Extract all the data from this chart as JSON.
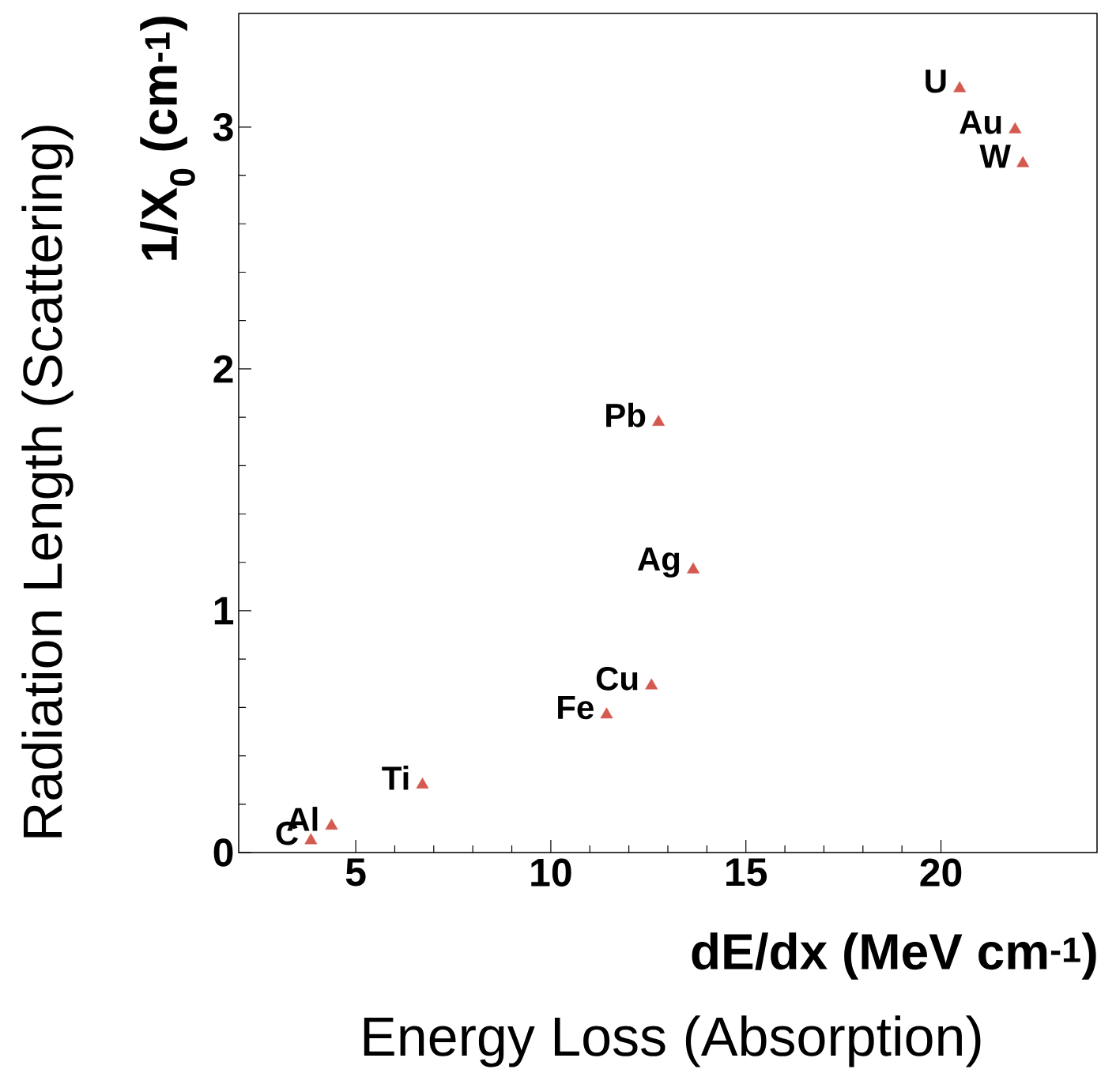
{
  "chart_data": {
    "type": "scatter",
    "xlabel": "dE/dx (MeV cm$^{-1}$)",
    "ylabel": "1/X$_{0}$ (cm$^{-1}$)",
    "x": [
      20.48,
      21.9,
      22.1,
      12.76,
      13.65,
      12.58,
      11.43,
      6.71,
      4.38,
      3.85
    ],
    "values": [
      3.16,
      2.99,
      2.85,
      1.78,
      1.17,
      0.69,
      0.57,
      0.28,
      0.11,
      0.05
    ],
    "color": "#d45a50",
    "marker": "triangle",
    "xlim": [
      2,
      24
    ],
    "ylim": [
      0,
      3.47
    ],
    "xticks": [
      5,
      10,
      15,
      20
    ],
    "yticks": [
      0,
      1,
      2,
      3
    ],
    "annotations": [
      "Radiation Length (Scattering)",
      "Energy Loss (Absorption)",
      {
        "text": "U",
        "x": 20.48,
        "y": 3.16
      },
      {
        "text": "Au",
        "x": 21.9,
        "y": 2.99
      },
      {
        "text": "W",
        "x": 22.1,
        "y": 2.85
      },
      {
        "text": "Pb",
        "x": 12.76,
        "y": 1.78
      },
      {
        "text": "Ag",
        "x": 13.65,
        "y": 1.17
      },
      {
        "text": "Cu",
        "x": 12.58,
        "y": 0.69
      },
      {
        "text": "Fe",
        "x": 11.43,
        "y": 0.57
      },
      {
        "text": "Ti",
        "x": 6.71,
        "y": 0.28
      },
      {
        "text": "Al",
        "x": 4.38,
        "y": 0.11
      },
      {
        "text": "C",
        "x": 3.85,
        "y": 0.05
      }
    ]
  }
}
